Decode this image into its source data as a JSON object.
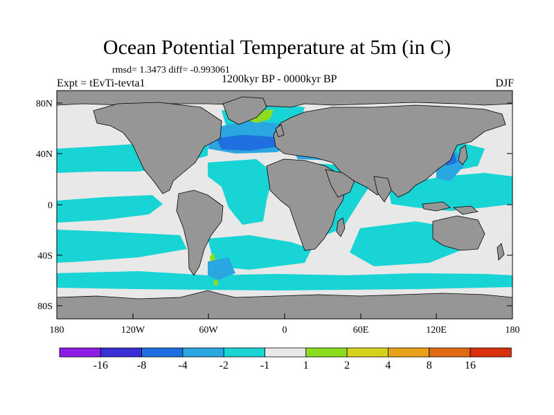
{
  "figure": {
    "title": "Ocean Potential Temperature at 5m (in C)",
    "stats": "rmsd= 1.3473 diff= -0.993061",
    "experiment": "Expt = tEvTi-tevta1",
    "period": "1200kyr BP - 0000kyr BP",
    "season": "DJF"
  },
  "axes": {
    "y_ticks": [
      "80N",
      "40N",
      "0",
      "40S",
      "80S"
    ],
    "x_ticks": [
      "180",
      "120W",
      "60W",
      "0",
      "60E",
      "120E",
      "180"
    ]
  },
  "legend": {
    "labels": [
      "-16",
      "-8",
      "-4",
      "-2",
      "-1",
      "1",
      "2",
      "4",
      "8",
      "16"
    ],
    "colors": [
      "#8c1ee6",
      "#3a2fd6",
      "#1f6fe0",
      "#2aa6e0",
      "#19d4d4",
      "#e8e8e8",
      "#8edc1e",
      "#d6d21a",
      "#e8a21a",
      "#e06a12",
      "#d8300e"
    ]
  },
  "colors": {
    "land": "#969696",
    "ocean_neutral": "#e8e8e8",
    "cool_1": "#19d4d4",
    "cool_2": "#2aa6e0",
    "cool_3": "#1f6fe0",
    "warm_1": "#8edc1e"
  }
}
